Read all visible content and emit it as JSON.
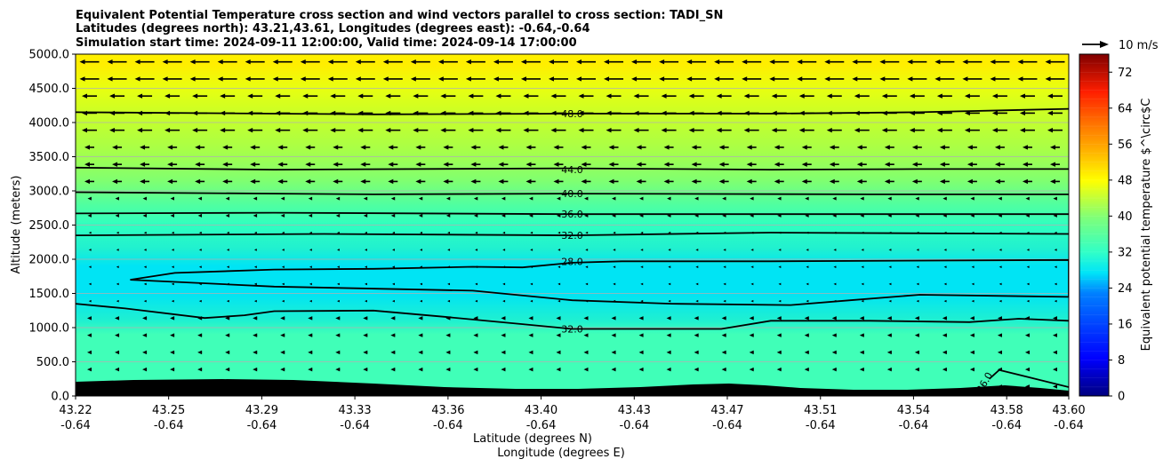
{
  "chart_data": {
    "type": "heatmap",
    "title_lines": [
      "Equivalent Potential Temperature cross section and wind vectors parallel to cross section: TADI_SN",
      "Latitudes (degrees north): 43.21,43.61, Longitudes (degrees east): -0.64,-0.64",
      "Simulation start time: 2024-09-11 12:00:00, Valid time: 2024-09-14 17:00:00"
    ],
    "xlabel_line1": "Latitude (degrees N)",
    "xlabel_line2": "Longitude (degrees E)",
    "ylabel": "Altitude (meters)",
    "x_ticks": [
      {
        "lat": "43.22",
        "lon": "-0.64"
      },
      {
        "lat": "43.25",
        "lon": "-0.64"
      },
      {
        "lat": "43.29",
        "lon": "-0.64"
      },
      {
        "lat": "43.33",
        "lon": "-0.64"
      },
      {
        "lat": "43.36",
        "lon": "-0.64"
      },
      {
        "lat": "43.40",
        "lon": "-0.64"
      },
      {
        "lat": "43.43",
        "lon": "-0.64"
      },
      {
        "lat": "43.47",
        "lon": "-0.64"
      },
      {
        "lat": "43.51",
        "lon": "-0.64"
      },
      {
        "lat": "43.54",
        "lon": "-0.64"
      },
      {
        "lat": "43.58",
        "lon": "-0.64"
      },
      {
        "lat": "43.60",
        "lon": "-0.64"
      }
    ],
    "y_ticks": [
      "0.0",
      "500.0",
      "1000.0",
      "1500.0",
      "2000.0",
      "2500.0",
      "3000.0",
      "3500.0",
      "4000.0",
      "4500.0",
      "5000.0"
    ],
    "ylim": [
      0,
      5000
    ],
    "grid": true,
    "colorbar": {
      "label": "Equivalent potential temperature $^\\circ$C",
      "min": 0,
      "max": 76,
      "ticks": [
        "0",
        "8",
        "16",
        "24",
        "32",
        "40",
        "48",
        "56",
        "64",
        "72"
      ]
    },
    "wind_key_label": "10 m/s",
    "contours": [
      {
        "label": "48.0",
        "points": [
          [
            0,
            4150
          ],
          [
            0.3,
            4120
          ],
          [
            0.5,
            4130
          ],
          [
            0.7,
            4130
          ],
          [
            0.85,
            4150
          ],
          [
            1,
            4200
          ]
        ]
      },
      {
        "label": "44.0",
        "points": [
          [
            0,
            3340
          ],
          [
            0.2,
            3310
          ],
          [
            0.5,
            3330
          ],
          [
            0.7,
            3310
          ],
          [
            0.85,
            3320
          ],
          [
            1,
            3320
          ]
        ]
      },
      {
        "label": "40.0",
        "points": [
          [
            0,
            2980
          ],
          [
            0.3,
            2950
          ],
          [
            0.5,
            2960
          ],
          [
            0.8,
            2950
          ],
          [
            1,
            2950
          ]
        ]
      },
      {
        "label": "36.0",
        "points": [
          [
            0,
            2670
          ],
          [
            0.2,
            2680
          ],
          [
            0.5,
            2660
          ],
          [
            0.8,
            2660
          ],
          [
            1,
            2660
          ]
        ]
      },
      {
        "label": "32.0",
        "points": [
          [
            0,
            2350
          ],
          [
            0.25,
            2370
          ],
          [
            0.5,
            2350
          ],
          [
            0.7,
            2390
          ],
          [
            1,
            2370
          ]
        ]
      },
      {
        "label": "28.0",
        "points": [
          [
            0.055,
            1700
          ],
          [
            0.1,
            1800
          ],
          [
            0.2,
            1850
          ],
          [
            0.3,
            1860
          ],
          [
            0.4,
            1890
          ],
          [
            0.45,
            1880
          ],
          [
            0.5,
            1950
          ],
          [
            0.55,
            1970
          ],
          [
            0.7,
            1970
          ],
          [
            1,
            1990
          ],
          [
            1,
            1450
          ],
          [
            0.85,
            1480
          ],
          [
            0.78,
            1400
          ],
          [
            0.72,
            1330
          ],
          [
            0.6,
            1350
          ],
          [
            0.5,
            1400
          ],
          [
            0.4,
            1540
          ],
          [
            0.2,
            1600
          ],
          [
            0.055,
            1700
          ]
        ]
      },
      {
        "label": "32.0",
        "points": [
          [
            0,
            1350
          ],
          [
            0.05,
            1280
          ],
          [
            0.13,
            1140
          ],
          [
            0.17,
            1180
          ],
          [
            0.2,
            1240
          ],
          [
            0.3,
            1250
          ],
          [
            0.37,
            1160
          ],
          [
            0.45,
            1050
          ],
          [
            0.5,
            980
          ],
          [
            0.58,
            980
          ],
          [
            0.65,
            980
          ],
          [
            0.7,
            1100
          ],
          [
            0.8,
            1100
          ],
          [
            0.9,
            1080
          ],
          [
            0.95,
            1130
          ],
          [
            1,
            1100
          ]
        ]
      },
      {
        "label": "36.0",
        "points": [
          [
            0.92,
            250
          ],
          [
            0.93,
            380
          ],
          [
            1,
            130
          ]
        ]
      }
    ]
  }
}
